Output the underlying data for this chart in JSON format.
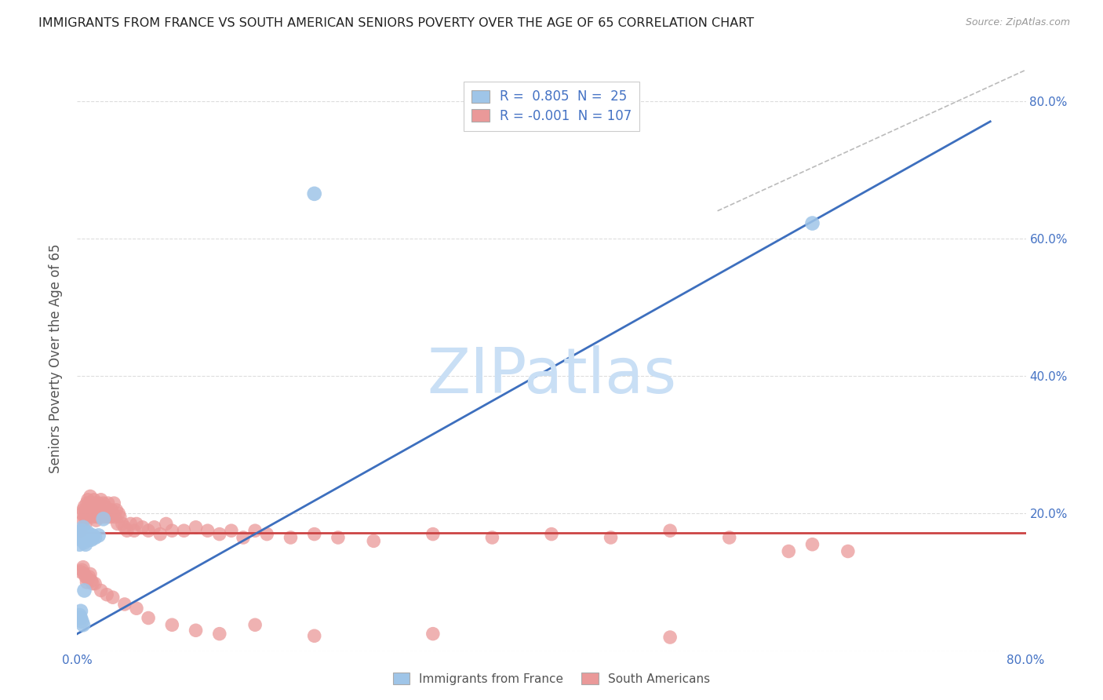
{
  "title": "IMMIGRANTS FROM FRANCE VS SOUTH AMERICAN SENIORS POVERTY OVER THE AGE OF 65 CORRELATION CHART",
  "source": "Source: ZipAtlas.com",
  "ylabel": "Seniors Poverty Over the Age of 65",
  "xlim": [
    0.0,
    0.8
  ],
  "ylim": [
    0.0,
    0.85
  ],
  "legend_entries": [
    {
      "label_prefix": "R = ",
      "r_val": " 0.805",
      "n_label": "N = ",
      "n_val": " 25",
      "color": "#9fc5e8"
    },
    {
      "label_prefix": "R = ",
      "r_val": "-0.001",
      "n_label": "N = ",
      "n_val": "107",
      "color": "#ea9999"
    }
  ],
  "watermark": "ZIPatlas",
  "watermark_color": "#c9dff5",
  "blue_scatter_x": [
    0.001,
    0.002,
    0.003,
    0.004,
    0.004,
    0.005,
    0.006,
    0.007,
    0.008,
    0.009,
    0.01,
    0.011,
    0.012,
    0.013,
    0.015,
    0.018,
    0.022,
    0.2,
    0.003,
    0.004,
    0.005,
    0.006,
    0.62,
    0.002,
    0.003
  ],
  "blue_scatter_y": [
    0.17,
    0.155,
    0.162,
    0.165,
    0.175,
    0.18,
    0.158,
    0.155,
    0.162,
    0.172,
    0.162,
    0.168,
    0.162,
    0.168,
    0.165,
    0.168,
    0.192,
    0.665,
    0.048,
    0.043,
    0.038,
    0.088,
    0.622,
    0.052,
    0.058
  ],
  "pink_scatter_x": [
    0.003,
    0.004,
    0.005,
    0.005,
    0.006,
    0.006,
    0.007,
    0.007,
    0.008,
    0.008,
    0.009,
    0.009,
    0.01,
    0.01,
    0.011,
    0.011,
    0.012,
    0.012,
    0.013,
    0.013,
    0.014,
    0.014,
    0.015,
    0.015,
    0.016,
    0.016,
    0.017,
    0.017,
    0.018,
    0.018,
    0.019,
    0.02,
    0.02,
    0.021,
    0.022,
    0.022,
    0.023,
    0.024,
    0.025,
    0.026,
    0.027,
    0.028,
    0.029,
    0.03,
    0.031,
    0.032,
    0.033,
    0.034,
    0.035,
    0.036,
    0.038,
    0.04,
    0.042,
    0.045,
    0.048,
    0.05,
    0.055,
    0.06,
    0.065,
    0.07,
    0.075,
    0.08,
    0.09,
    0.1,
    0.11,
    0.12,
    0.13,
    0.14,
    0.15,
    0.16,
    0.18,
    0.2,
    0.22,
    0.25,
    0.3,
    0.35,
    0.4,
    0.45,
    0.5,
    0.55,
    0.62,
    0.65,
    0.003,
    0.004,
    0.005,
    0.006,
    0.007,
    0.008,
    0.009,
    0.01,
    0.011,
    0.012,
    0.013,
    0.015,
    0.02,
    0.025,
    0.03,
    0.04,
    0.05,
    0.06,
    0.08,
    0.1,
    0.12,
    0.15,
    0.2,
    0.3,
    0.5,
    0.6
  ],
  "pink_scatter_y": [
    0.175,
    0.2,
    0.19,
    0.205,
    0.195,
    0.21,
    0.185,
    0.205,
    0.195,
    0.215,
    0.205,
    0.22,
    0.195,
    0.215,
    0.2,
    0.225,
    0.2,
    0.215,
    0.195,
    0.21,
    0.205,
    0.22,
    0.2,
    0.215,
    0.205,
    0.19,
    0.21,
    0.195,
    0.205,
    0.215,
    0.195,
    0.205,
    0.22,
    0.2,
    0.215,
    0.195,
    0.2,
    0.21,
    0.195,
    0.215,
    0.2,
    0.195,
    0.205,
    0.2,
    0.215,
    0.195,
    0.205,
    0.185,
    0.2,
    0.195,
    0.185,
    0.18,
    0.175,
    0.185,
    0.175,
    0.185,
    0.18,
    0.175,
    0.18,
    0.17,
    0.185,
    0.175,
    0.175,
    0.18,
    0.175,
    0.17,
    0.175,
    0.165,
    0.175,
    0.17,
    0.165,
    0.17,
    0.165,
    0.16,
    0.17,
    0.165,
    0.17,
    0.165,
    0.175,
    0.165,
    0.155,
    0.145,
    0.115,
    0.118,
    0.122,
    0.112,
    0.108,
    0.1,
    0.105,
    0.108,
    0.112,
    0.102,
    0.098,
    0.098,
    0.088,
    0.082,
    0.078,
    0.068,
    0.062,
    0.048,
    0.038,
    0.03,
    0.025,
    0.038,
    0.022,
    0.025,
    0.02,
    0.145
  ],
  "blue_line_x": [
    0.0,
    0.77
  ],
  "blue_line_y": [
    0.025,
    0.77
  ],
  "pink_line_x": [
    0.0,
    0.8
  ],
  "pink_line_y": [
    0.172,
    0.172
  ],
  "dashed_line_x": [
    0.54,
    0.8
  ],
  "dashed_line_y": [
    0.64,
    0.845
  ],
  "blue_color": "#3d6fbe",
  "blue_scatter_color": "#9fc5e8",
  "pink_color": "#cc4444",
  "pink_scatter_color": "#ea9999",
  "dashed_color": "#bbbbbb",
  "grid_color": "#dddddd",
  "title_color": "#222222",
  "axis_label_color": "#4472c4",
  "ylabel_color": "#555555",
  "background_color": "#ffffff"
}
